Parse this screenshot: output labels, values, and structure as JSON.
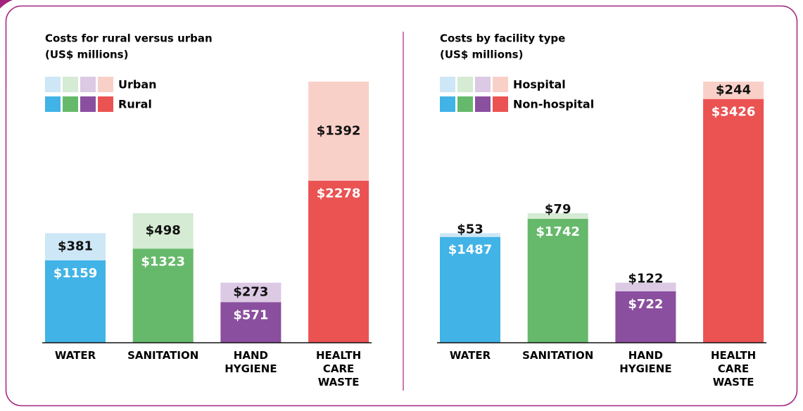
{
  "chart_data": [
    {
      "type": "bar",
      "stacked": true,
      "title": "Costs for rural versus urban",
      "subtitle": "(US$ millions)",
      "categories": [
        "WATER",
        "SANITATION",
        "HAND HYGIENE",
        "HEALTH CARE WASTE"
      ],
      "series": [
        {
          "name": "Rural",
          "colors": [
            "#41b3e6",
            "#66b96b",
            "#8a4f9e",
            "#eb5252"
          ],
          "values": [
            1159,
            1323,
            571,
            2278
          ],
          "value_labels": [
            "$1159",
            "$1323",
            "$571",
            "$2278"
          ]
        },
        {
          "name": "Urban",
          "colors": [
            "#cde7f6",
            "#d5ebd3",
            "#dcc9e4",
            "#f9d0c8"
          ],
          "values": [
            381,
            498,
            273,
            1392
          ],
          "value_labels": [
            "$381",
            "$498",
            "$273",
            "$1392"
          ]
        }
      ]
    },
    {
      "type": "bar",
      "stacked": true,
      "title": "Costs by facility type",
      "subtitle": "(US$ millions)",
      "categories": [
        "WATER",
        "SANITATION",
        "HAND HYGIENE",
        "HEALTH CARE WASTE"
      ],
      "series": [
        {
          "name": "Non-hospital",
          "colors": [
            "#41b3e6",
            "#66b96b",
            "#8a4f9e",
            "#eb5252"
          ],
          "values": [
            1487,
            1742,
            722,
            3426
          ],
          "value_labels": [
            "$1487",
            "$1742",
            "$722",
            "$3426"
          ]
        },
        {
          "name": "Hospital",
          "colors": [
            "#cde7f6",
            "#d5ebd3",
            "#dcc9e4",
            "#f9d0c8"
          ],
          "values": [
            53,
            79,
            122,
            244
          ],
          "value_labels": [
            "$53",
            "$79",
            "$122",
            "$244"
          ]
        }
      ]
    }
  ]
}
